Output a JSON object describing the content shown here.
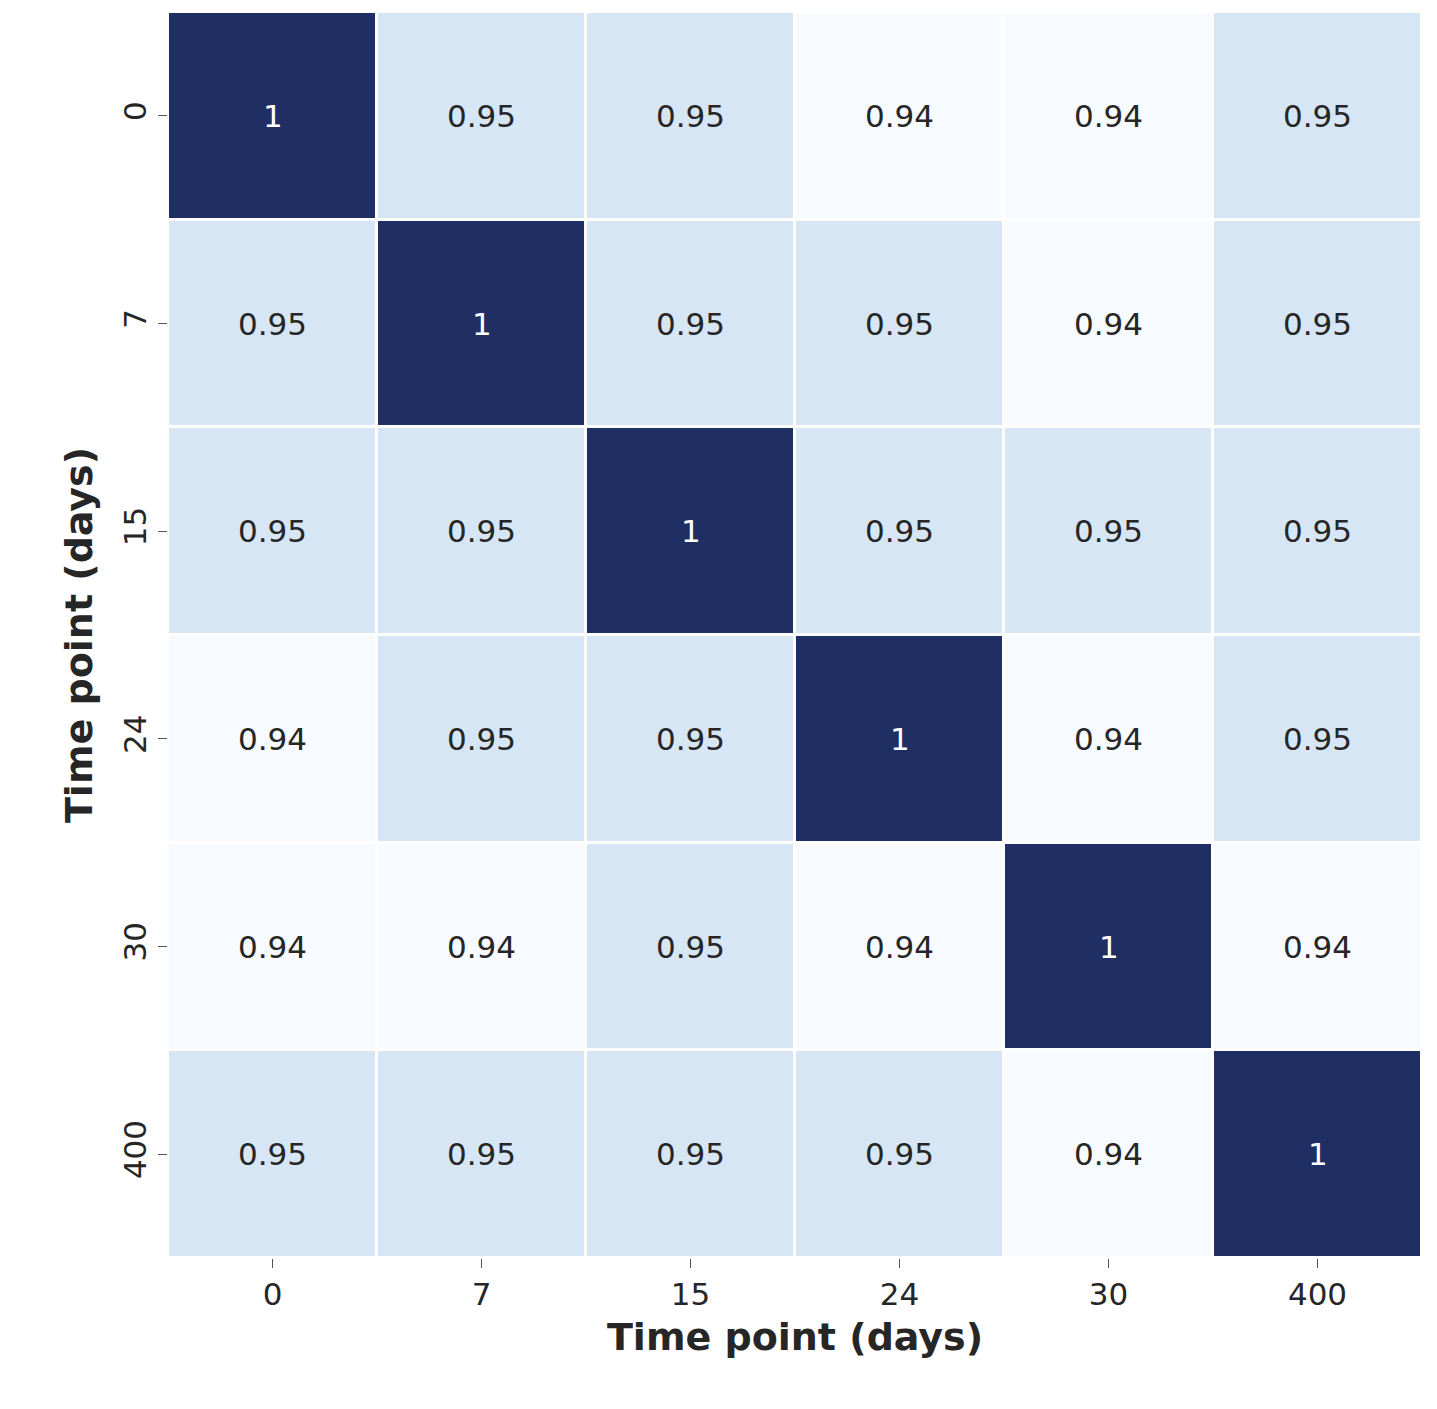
{
  "chart_data": {
    "type": "heatmap",
    "x_label": "Time point (days)",
    "y_label": "Time point (days)",
    "categories": [
      "0",
      "7",
      "15",
      "24",
      "30",
      "400"
    ],
    "cells": [
      [
        1,
        0.95,
        0.95,
        0.94,
        0.94,
        0.95
      ],
      [
        0.95,
        1,
        0.95,
        0.95,
        0.94,
        0.95
      ],
      [
        0.95,
        0.95,
        1,
        0.95,
        0.95,
        0.95
      ],
      [
        0.94,
        0.95,
        0.95,
        1,
        0.94,
        0.95
      ],
      [
        0.94,
        0.94,
        0.95,
        0.94,
        1,
        0.94
      ],
      [
        0.95,
        0.95,
        0.95,
        0.95,
        0.94,
        1
      ]
    ],
    "data_labels": true
  }
}
